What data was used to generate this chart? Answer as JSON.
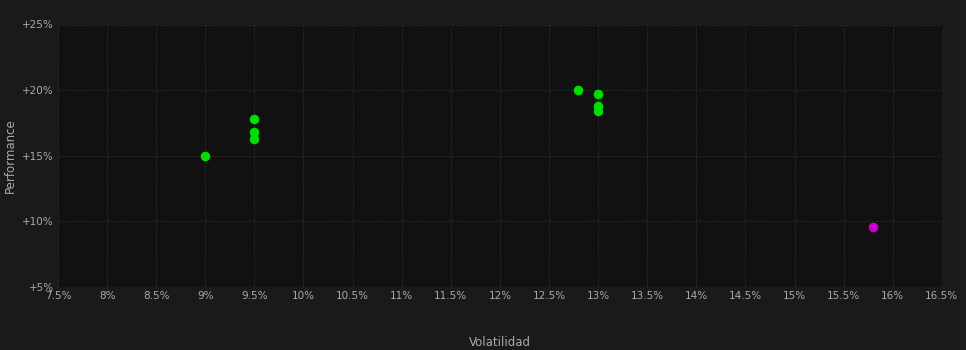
{
  "background_color": "#1a1a1a",
  "plot_bg_color": "#111111",
  "grid_color": "#2a2a2a",
  "xlabel": "Volatilidad",
  "ylabel": "Performance",
  "xlim": [
    0.075,
    0.165
  ],
  "ylim": [
    0.05,
    0.25
  ],
  "xticks": [
    0.075,
    0.08,
    0.085,
    0.09,
    0.095,
    0.1,
    0.105,
    0.11,
    0.115,
    0.12,
    0.125,
    0.13,
    0.135,
    0.14,
    0.145,
    0.15,
    0.155,
    0.16,
    0.165
  ],
  "yticks": [
    0.05,
    0.1,
    0.15,
    0.2,
    0.25
  ],
  "green_points": [
    [
      0.09,
      0.15
    ],
    [
      0.095,
      0.178
    ],
    [
      0.095,
      0.168
    ],
    [
      0.095,
      0.163
    ],
    [
      0.128,
      0.2
    ],
    [
      0.13,
      0.197
    ],
    [
      0.13,
      0.188
    ],
    [
      0.13,
      0.184
    ]
  ],
  "magenta_points": [
    [
      0.158,
      0.096
    ]
  ],
  "green_color": "#00dd00",
  "magenta_color": "#cc00cc",
  "dot_size": 35,
  "tick_label_color": "#aaaaaa",
  "axis_label_color": "#aaaaaa",
  "tick_label_fontsize": 7.5,
  "axis_label_fontsize": 8.5
}
